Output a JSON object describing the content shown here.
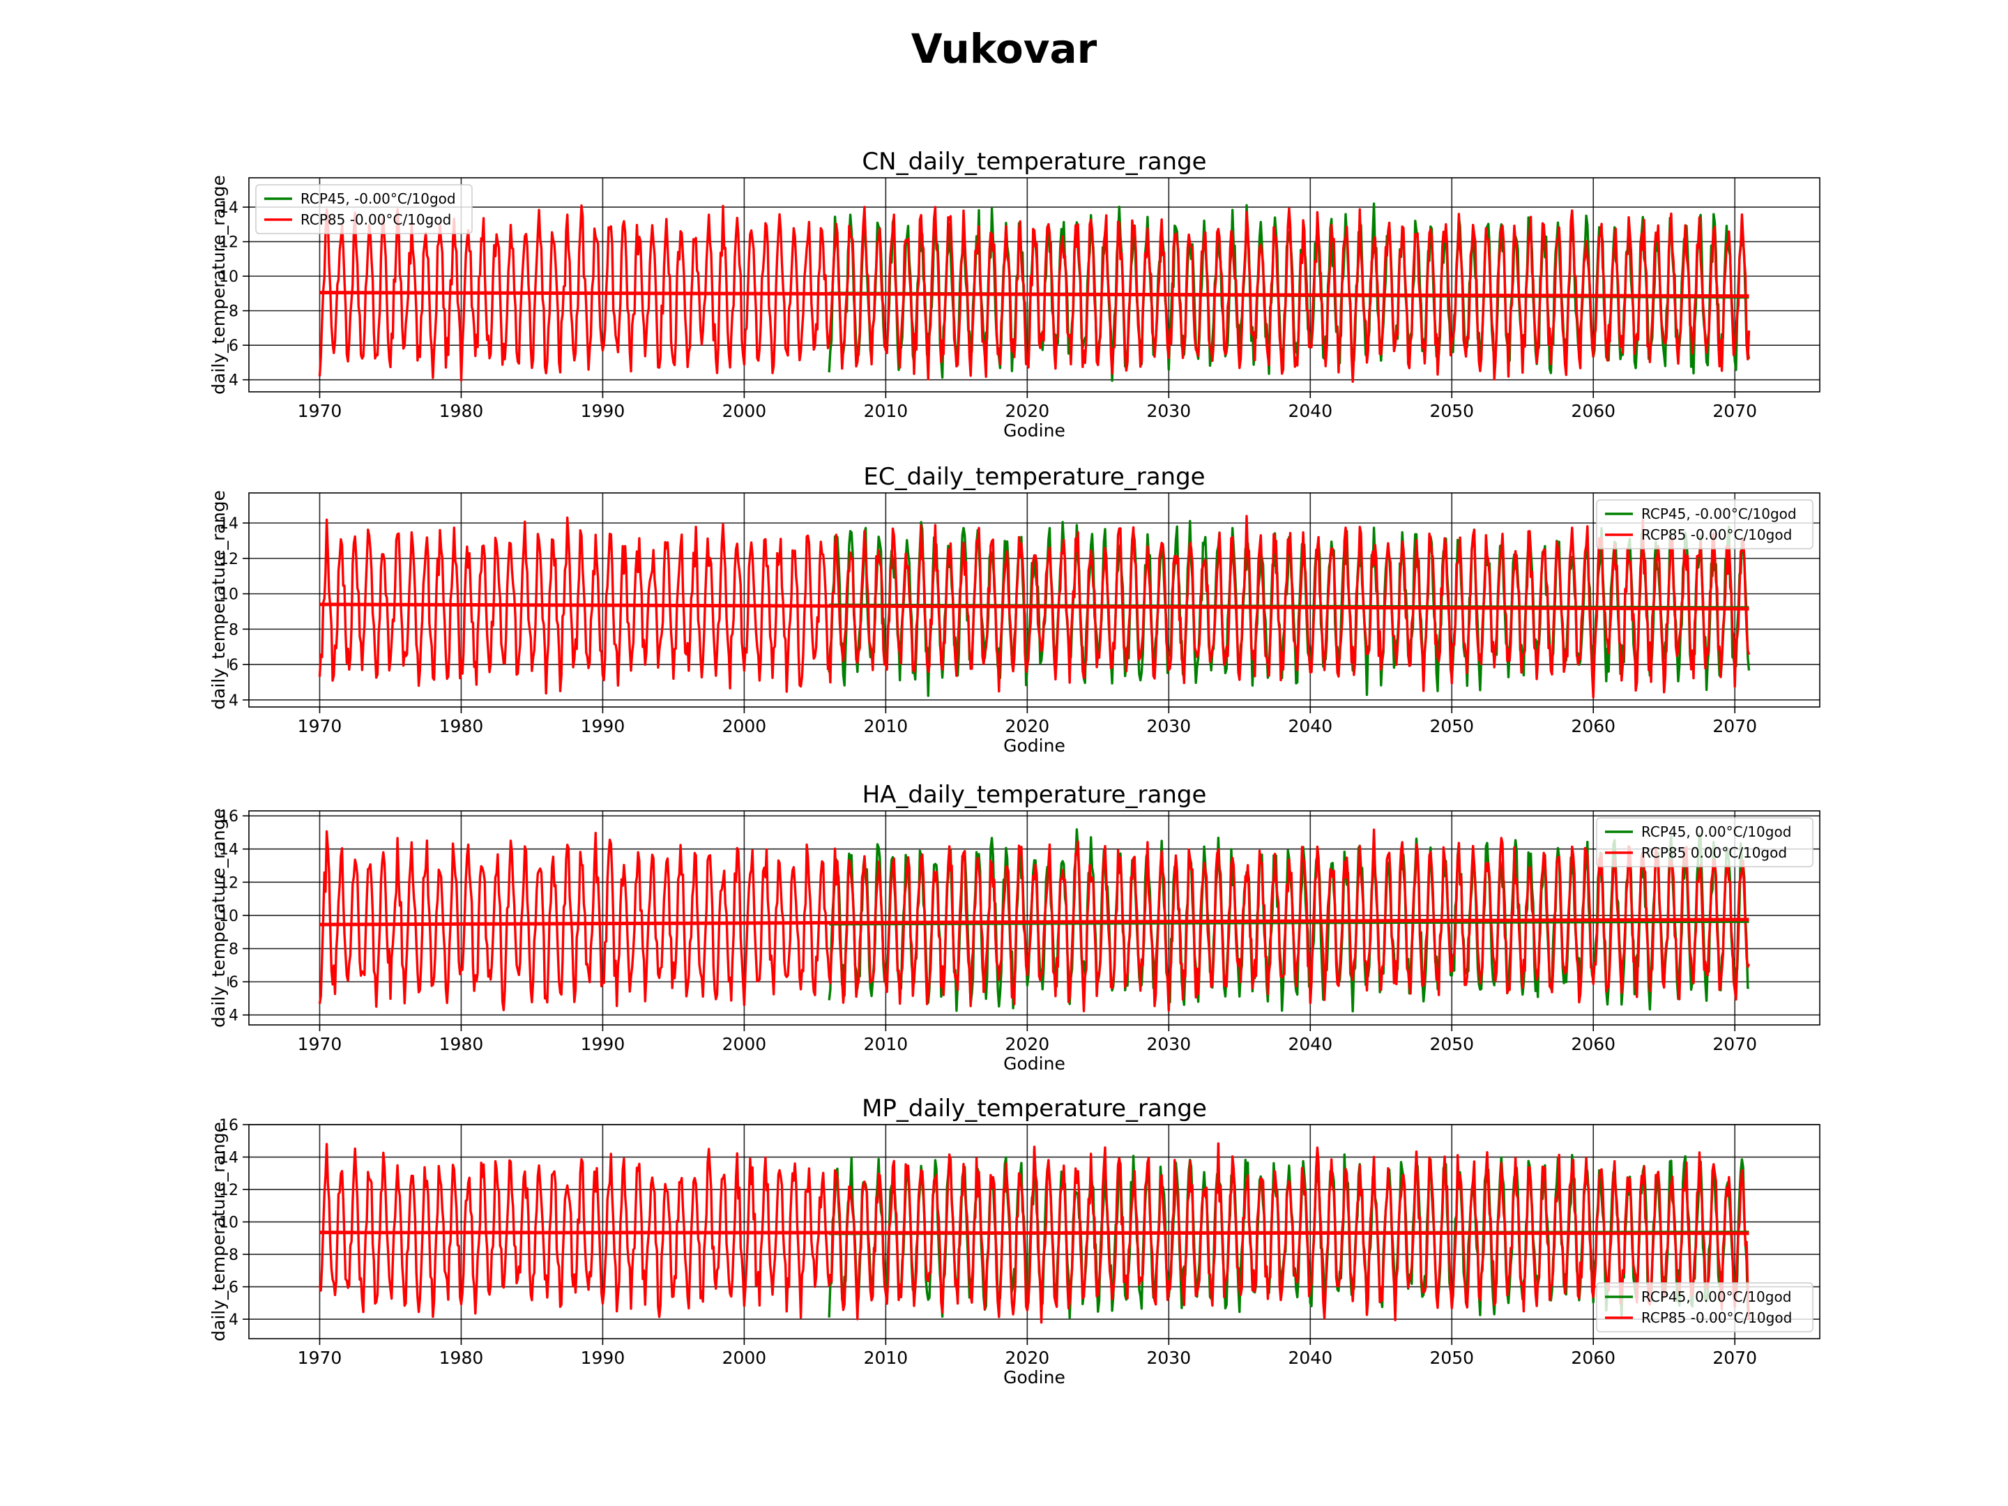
{
  "figure": {
    "title": "Vukovar"
  },
  "colors": {
    "rcp45": "#008000",
    "rcp85": "#ff0000",
    "grid": "#000000"
  },
  "chart_data": [
    {
      "type": "line",
      "title": "CN_daily_temperature_range",
      "xlabel": "Godine",
      "ylabel": "daily_temperature_range",
      "xlim": [
        1965,
        2076
      ],
      "ylim": [
        3.3,
        15.7
      ],
      "xticks": [
        1970,
        1980,
        1990,
        2000,
        2010,
        2020,
        2030,
        2040,
        2050,
        2060,
        2070
      ],
      "yticks": [
        4,
        6,
        8,
        10,
        12,
        14
      ],
      "grid": true,
      "legend_position": "upper-left",
      "series": [
        {
          "name": "RCP45, -0.00°C/10god",
          "color": "#008000",
          "start": 2006,
          "end": 2071,
          "mean": 9.0,
          "amp": 3.6,
          "seed": 11,
          "trend": [
            9.0,
            8.8
          ]
        },
        {
          "name": "RCP85 -0.00°C/10god",
          "color": "#ff0000",
          "start": 1970,
          "end": 2071,
          "mean": 9.0,
          "amp": 3.6,
          "seed": 12,
          "trend": [
            9.05,
            8.85
          ]
        }
      ]
    },
    {
      "type": "line",
      "title": "EC_daily_temperature_range",
      "xlabel": "Godine",
      "ylabel": "daily_temperature_range",
      "xlim": [
        1965,
        2076
      ],
      "ylim": [
        3.6,
        15.7
      ],
      "xticks": [
        1970,
        1980,
        1990,
        2000,
        2010,
        2020,
        2030,
        2040,
        2050,
        2060,
        2070
      ],
      "yticks": [
        4,
        6,
        8,
        10,
        12,
        14
      ],
      "grid": true,
      "legend_position": "upper-right",
      "series": [
        {
          "name": "RCP45, -0.00°C/10god",
          "color": "#008000",
          "start": 2006,
          "end": 2071,
          "mean": 9.3,
          "amp": 3.5,
          "seed": 21,
          "trend": [
            9.35,
            9.2
          ]
        },
        {
          "name": "RCP85 -0.00°C/10god",
          "color": "#ff0000",
          "start": 1970,
          "end": 2071,
          "mean": 9.3,
          "amp": 3.5,
          "seed": 22,
          "trend": [
            9.4,
            9.15
          ]
        }
      ]
    },
    {
      "type": "line",
      "title": "HA_daily_temperature_range",
      "xlabel": "Godine",
      "ylabel": "daily_temperature_range",
      "xlim": [
        1965,
        2076
      ],
      "ylim": [
        3.4,
        16.3
      ],
      "xticks": [
        1970,
        1980,
        1990,
        2000,
        2010,
        2020,
        2030,
        2040,
        2050,
        2060,
        2070
      ],
      "yticks": [
        4,
        6,
        8,
        10,
        12,
        14,
        16
      ],
      "grid": true,
      "legend_position": "upper-right",
      "series": [
        {
          "name": "RCP45, 0.00°C/10god",
          "color": "#008000",
          "start": 2006,
          "end": 2071,
          "mean": 9.6,
          "amp": 3.9,
          "seed": 31,
          "trend": [
            9.5,
            9.65
          ]
        },
        {
          "name": "RCP85 0.00°C/10god",
          "color": "#ff0000",
          "start": 1970,
          "end": 2071,
          "mean": 9.6,
          "amp": 3.9,
          "seed": 32,
          "trend": [
            9.45,
            9.75
          ]
        }
      ]
    },
    {
      "type": "line",
      "title": "MP_daily_temperature_range",
      "xlabel": "Godine",
      "ylabel": "daily_temperature_range",
      "xlim": [
        1965,
        2076
      ],
      "ylim": [
        2.8,
        16.0
      ],
      "xticks": [
        1970,
        1980,
        1990,
        2000,
        2010,
        2020,
        2030,
        2040,
        2050,
        2060,
        2070
      ],
      "yticks": [
        4,
        6,
        8,
        10,
        12,
        14,
        16
      ],
      "grid": true,
      "legend_position": "lower-right",
      "series": [
        {
          "name": "RCP45, 0.00°C/10god",
          "color": "#008000",
          "start": 2006,
          "end": 2071,
          "mean": 9.3,
          "amp": 3.8,
          "seed": 41,
          "trend": [
            9.3,
            9.35
          ]
        },
        {
          "name": "RCP85 -0.00°C/10god",
          "color": "#ff0000",
          "start": 1970,
          "end": 2071,
          "mean": 9.3,
          "amp": 3.8,
          "seed": 42,
          "trend": [
            9.35,
            9.3
          ]
        }
      ]
    }
  ]
}
